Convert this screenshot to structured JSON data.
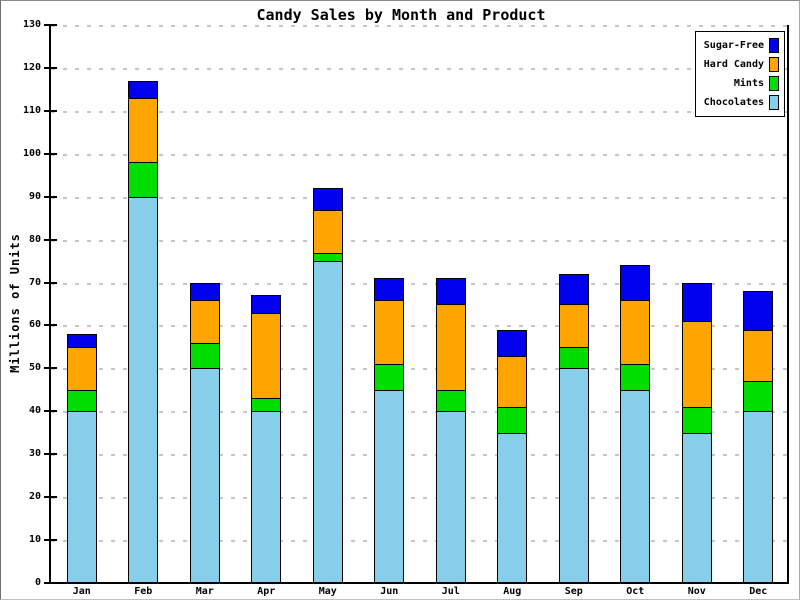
{
  "window": {
    "background": "#ffffff",
    "frame_border_dark": "#6f6f6f",
    "frame_border_light": "#c0c0c0"
  },
  "colors": {
    "axis": "#000000",
    "grid": "#c6c6c6",
    "legend_border": "#000000",
    "legend_background": "#ffffff"
  },
  "chart_data": {
    "type": "bar",
    "stacked": true,
    "title": "Candy Sales by Month and Product",
    "xlabel": "",
    "ylabel": "Millions of Units",
    "categories": [
      "Jan",
      "Feb",
      "Mar",
      "Apr",
      "May",
      "Jun",
      "Jul",
      "Aug",
      "Sep",
      "Oct",
      "Nov",
      "Dec"
    ],
    "series": [
      {
        "name": "Chocolates",
        "color": "#87CEEB",
        "values": [
          40,
          90,
          50,
          40,
          75,
          45,
          40,
          35,
          50,
          45,
          35,
          40
        ]
      },
      {
        "name": "Mints",
        "color": "#00DD00",
        "values": [
          5,
          8,
          6,
          3,
          2,
          6,
          5,
          6,
          5,
          6,
          6,
          7
        ]
      },
      {
        "name": "Hard Candy",
        "color": "#FFA500",
        "values": [
          10,
          15,
          10,
          20,
          10,
          15,
          20,
          12,
          10,
          15,
          20,
          12
        ]
      },
      {
        "name": "Sugar-Free",
        "color": "#0000EE",
        "values": [
          3,
          4,
          4,
          4,
          5,
          5,
          6,
          6,
          7,
          8,
          9,
          9
        ]
      }
    ],
    "totals": [
      58,
      117,
      70,
      67,
      92,
      71,
      71,
      59,
      72,
      74,
      70,
      68
    ],
    "ylim": [
      0,
      130
    ],
    "ytick_step": 10,
    "yticks": [
      0,
      10,
      20,
      30,
      40,
      50,
      60,
      70,
      80,
      90,
      100,
      110,
      120,
      130
    ],
    "grid": "horizontal-dashed",
    "legend_position": "top-right",
    "legend_order": [
      "Sugar-Free",
      "Hard Candy",
      "Mints",
      "Chocolates"
    ]
  }
}
